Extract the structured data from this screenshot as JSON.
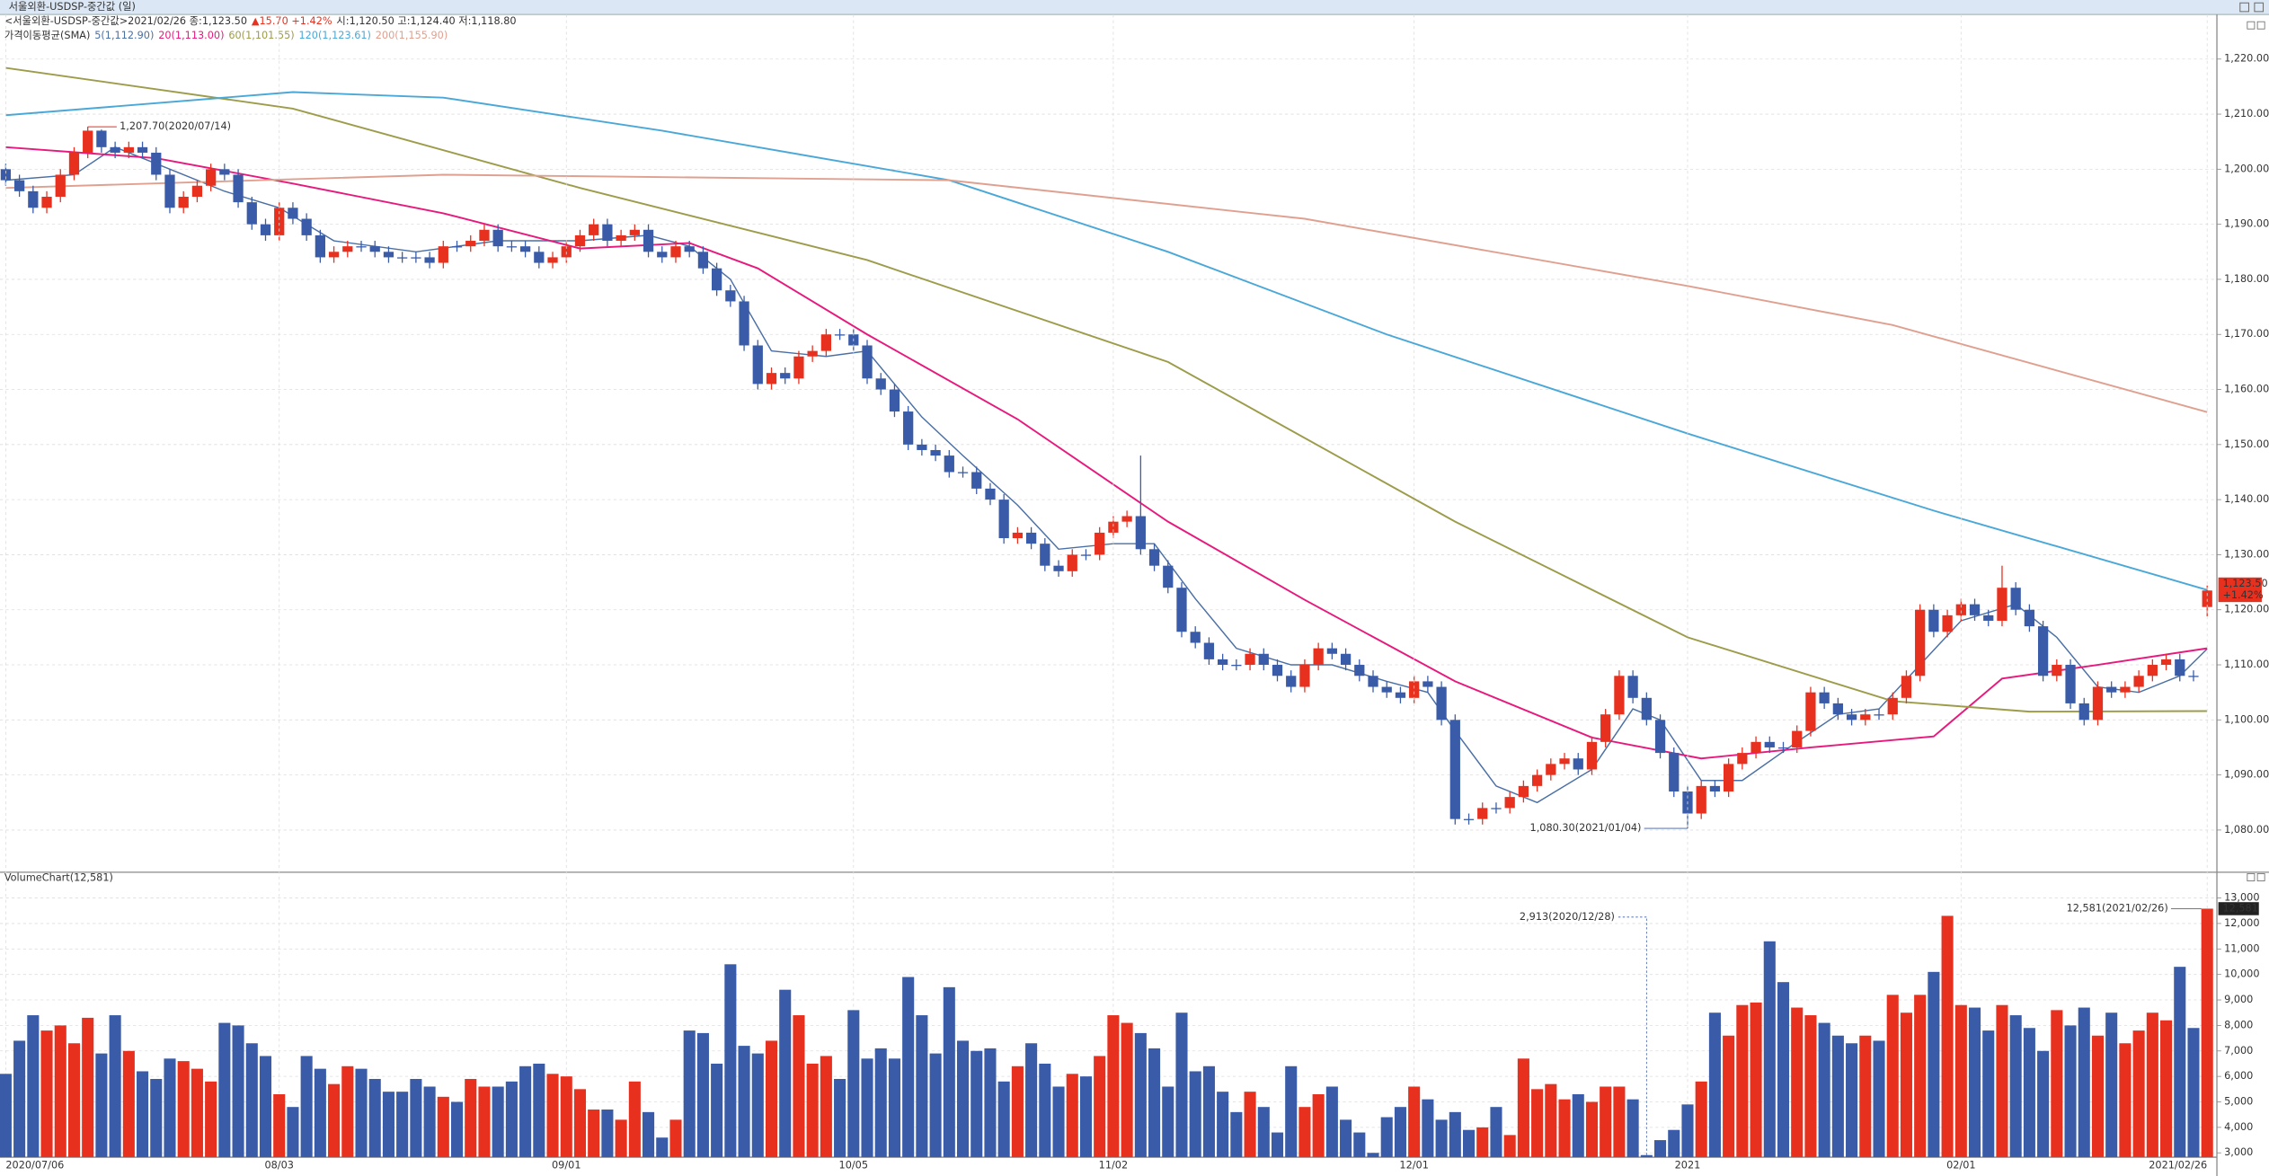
{
  "window_title": "서울외환-USDSP-중간값 (일)",
  "chart_data": [
    {
      "type": "candlestick",
      "info": [
        "<서울외환-USDSP-중간값>2021/02/26 종:1,123.50",
        "▲15.70 +1.42%",
        "시:1,120.50 고:1,124.40 저:1,118.80"
      ],
      "up_color": "#e8301f",
      "down_color": "#3a5ca8",
      "xlim": [
        -0.42,
        161.5
      ],
      "ylim": [
        1072.6,
        1228.1
      ],
      "yticks": [
        {
          "value": 1080,
          "label": "1,080.00"
        },
        {
          "value": 1090,
          "label": "1,090.00"
        },
        {
          "value": 1100,
          "label": "1,100.00"
        },
        {
          "value": 1110,
          "label": "1,110.00"
        },
        {
          "value": 1120,
          "label": "1,120.00"
        },
        {
          "value": 1130,
          "label": "1,130.00"
        },
        {
          "value": 1140,
          "label": "1,140.00"
        },
        {
          "value": 1150,
          "label": "1,150.00"
        },
        {
          "value": 1160,
          "label": "1,160.00"
        },
        {
          "value": 1170,
          "label": "1,170.00"
        },
        {
          "value": 1180,
          "label": "1,180.00"
        },
        {
          "value": 1190,
          "label": "1,190.00"
        },
        {
          "value": 1200,
          "label": "1,200.00"
        },
        {
          "value": 1210,
          "label": "1,210.00"
        },
        {
          "value": 1220,
          "label": "1,220.00"
        }
      ],
      "open": [
        1200,
        1198,
        1196,
        1193,
        1195,
        1199,
        1203,
        1207,
        1204,
        1203,
        1204,
        1203,
        1199,
        1193,
        1195,
        1197,
        1200,
        1199,
        1194,
        1190,
        1188,
        1193,
        1191,
        1188,
        1184,
        1185,
        1186,
        1186,
        1185,
        1184,
        1184,
        1184,
        1183,
        1186,
        1186,
        1187,
        1189,
        1186,
        1186,
        1185,
        1183,
        1184,
        1186,
        1188,
        1190,
        1187,
        1188,
        1189,
        1185,
        1184,
        1186,
        1185,
        1182,
        1178,
        1176,
        1168,
        1161,
        1163,
        1162,
        1166,
        1167,
        1170,
        1170,
        1168,
        1162,
        1160,
        1156,
        1150,
        1149,
        1148,
        1145,
        1145,
        1142,
        1140,
        1133,
        1134,
        1132,
        1128,
        1127,
        1130,
        1130,
        1134,
        1136,
        1137,
        1131,
        1128,
        1124,
        1116,
        1114,
        1111,
        1110,
        1110,
        1112,
        1110,
        1108,
        1106,
        1110,
        1113,
        1112,
        1110,
        1108,
        1106,
        1105,
        1104,
        1107,
        1106,
        1100,
        1082,
        1082,
        1084,
        1084,
        1086,
        1088,
        1090,
        1092,
        1093,
        1091,
        1096,
        1101,
        1108,
        1104,
        1100,
        1094,
        1087,
        1083,
        1088,
        1087,
        1092,
        1094,
        1096,
        1095,
        1095,
        1098,
        1105,
        1103,
        1101,
        1100,
        1101,
        1101,
        1104,
        1108,
        1120,
        1116,
        1119,
        1121,
        1119,
        1118,
        1124,
        1120,
        1117,
        1108,
        1110,
        1103,
        1100,
        1106,
        1105,
        1106,
        1108,
        1110,
        1111,
        1108,
        1120.5
      ],
      "high": [
        1201,
        1199,
        1197,
        1196,
        1200,
        1204,
        1207.7,
        1207.2,
        1205,
        1205,
        1205,
        1204,
        1200,
        1196,
        1198,
        1201,
        1201,
        1200,
        1195,
        1191,
        1194,
        1194,
        1192,
        1189,
        1186,
        1187,
        1187,
        1187,
        1186,
        1185,
        1185,
        1185,
        1187,
        1187,
        1188,
        1190,
        1190,
        1187,
        1187,
        1186,
        1185,
        1187,
        1189,
        1191,
        1191,
        1189,
        1190,
        1190,
        1186,
        1187,
        1187,
        1186,
        1183,
        1179,
        1177,
        1169,
        1164,
        1164,
        1167,
        1168,
        1171,
        1171,
        1171,
        1169,
        1163,
        1161,
        1157,
        1151,
        1150,
        1149,
        1146,
        1146,
        1143,
        1141,
        1135,
        1135,
        1133,
        1129,
        1131,
        1131,
        1135,
        1137,
        1138,
        1148,
        1132,
        1129,
        1125,
        1117,
        1115,
        1112,
        1111,
        1113,
        1113,
        1111,
        1109,
        1111,
        1114,
        1114,
        1113,
        1111,
        1109,
        1107,
        1106,
        1108,
        1108,
        1107,
        1101,
        1083,
        1085,
        1085,
        1087,
        1089,
        1091,
        1093,
        1094,
        1094,
        1097,
        1102,
        1109,
        1109,
        1105,
        1101,
        1095,
        1088,
        1089,
        1089,
        1093,
        1095,
        1097,
        1097,
        1096,
        1099,
        1106,
        1106,
        1104,
        1102,
        1102,
        1102,
        1105,
        1109,
        1121,
        1121,
        1120,
        1122,
        1122,
        1120,
        1128,
        1125,
        1121,
        1118,
        1111,
        1111,
        1104,
        1107,
        1107,
        1107,
        1109,
        1111,
        1112,
        1112,
        1109,
        1124.4
      ],
      "low": [
        1197,
        1195,
        1192,
        1192,
        1194,
        1198,
        1202,
        1203,
        1202,
        1202,
        1202,
        1198,
        1192,
        1192,
        1194,
        1196,
        1198,
        1193,
        1189,
        1187,
        1187,
        1190,
        1187,
        1183,
        1183,
        1184,
        1185,
        1184,
        1183,
        1183,
        1183,
        1182,
        1182,
        1185,
        1185,
        1186,
        1185,
        1185,
        1184,
        1182,
        1182,
        1183,
        1185,
        1187,
        1186,
        1186,
        1187,
        1184,
        1183,
        1183,
        1184,
        1181,
        1177,
        1175,
        1167,
        1160,
        1160,
        1161,
        1161,
        1165,
        1166,
        1169,
        1167,
        1161,
        1159,
        1155,
        1149,
        1148,
        1147,
        1144,
        1144,
        1141,
        1139,
        1132,
        1132,
        1131,
        1127,
        1126,
        1126,
        1129,
        1129,
        1133,
        1135,
        1130,
        1127,
        1123,
        1115,
        1113,
        1110,
        1109,
        1109,
        1109,
        1109,
        1107,
        1105,
        1105,
        1109,
        1111,
        1109,
        1107,
        1105,
        1104,
        1103,
        1103,
        1105,
        1099,
        1081,
        1081,
        1081,
        1083,
        1083,
        1085,
        1087,
        1089,
        1091,
        1090,
        1090,
        1095,
        1100,
        1103,
        1099,
        1093,
        1086,
        1080.3,
        1082,
        1086,
        1086,
        1091,
        1093,
        1094,
        1094,
        1094,
        1097,
        1102,
        1100,
        1099,
        1099,
        1100,
        1100,
        1103,
        1107,
        1115,
        1115,
        1118,
        1118,
        1117,
        1117,
        1119,
        1116,
        1107,
        1107,
        1102,
        1099,
        1099,
        1104,
        1104,
        1105,
        1107,
        1109,
        1107,
        1107,
        1118.8
      ],
      "close": [
        1198,
        1196,
        1193,
        1195,
        1199,
        1203,
        1207,
        1204,
        1203,
        1204,
        1203,
        1199,
        1193,
        1195,
        1197,
        1200,
        1199,
        1194,
        1190,
        1188,
        1193,
        1191,
        1188,
        1184,
        1185,
        1186,
        1186,
        1185,
        1184,
        1184,
        1184,
        1183,
        1186,
        1186,
        1187,
        1189,
        1186,
        1186,
        1185,
        1183,
        1184,
        1186,
        1188,
        1190,
        1187,
        1188,
        1189,
        1185,
        1184,
        1186,
        1185,
        1182,
        1178,
        1176,
        1168,
        1161,
        1163,
        1162,
        1166,
        1167,
        1170,
        1170,
        1168,
        1162,
        1160,
        1156,
        1150,
        1149,
        1148,
        1145,
        1145,
        1142,
        1140,
        1133,
        1134,
        1132,
        1128,
        1127,
        1130,
        1130,
        1134,
        1136,
        1137,
        1131,
        1128,
        1124,
        1116,
        1114,
        1111,
        1110,
        1110,
        1112,
        1110,
        1108,
        1106,
        1110,
        1113,
        1112,
        1110,
        1108,
        1106,
        1105,
        1104,
        1107,
        1106,
        1100,
        1082,
        1082,
        1084,
        1084,
        1086,
        1088,
        1090,
        1092,
        1093,
        1091,
        1096,
        1101,
        1108,
        1104,
        1100,
        1094,
        1087,
        1083,
        1088,
        1087,
        1092,
        1094,
        1096,
        1095,
        1095,
        1098,
        1105,
        1103,
        1101,
        1100,
        1101,
        1101,
        1104,
        1108,
        1120,
        1116,
        1119,
        1121,
        1119,
        1118,
        1124,
        1120,
        1117,
        1108,
        1110,
        1103,
        1100,
        1106,
        1105,
        1106,
        1108,
        1110,
        1111,
        1108,
        1108,
        1123.5
      ],
      "sma_label": "가격이동평균(SMA)",
      "series": [
        {
          "name": "5(1,112.90)",
          "color": "#4a6fa5",
          "x": [
            0,
            5,
            8,
            12,
            16,
            20,
            24,
            30,
            36,
            42,
            47,
            50,
            53,
            56,
            60,
            63,
            67,
            70,
            74,
            77,
            81,
            84,
            87,
            90,
            94,
            97,
            101,
            104,
            106,
            109,
            112,
            116,
            119,
            121,
            124,
            127,
            131,
            134,
            137,
            140,
            143,
            147,
            150,
            153,
            156,
            159,
            161
          ],
          "values": [
            1198,
            1199,
            1204,
            1200,
            1196,
            1193,
            1187,
            1185,
            1187,
            1187,
            1188,
            1186,
            1180,
            1167,
            1166,
            1167,
            1155,
            1148,
            1139,
            1131,
            1132,
            1132,
            1122,
            1113,
            1110,
            1110,
            1107,
            1105,
            1098,
            1088,
            1085,
            1091,
            1102,
            1100,
            1089,
            1089,
            1096,
            1101,
            1102,
            1110,
            1118,
            1121,
            1115,
            1106,
            1105,
            1108,
            1112.9
          ]
        },
        {
          "name": "20(1,113.00)",
          "color": "#e8197d",
          "x": [
            0,
            11,
            21,
            32,
            42,
            50,
            55,
            63,
            74,
            85,
            95,
            106,
            116,
            124,
            132,
            141,
            146,
            153,
            161
          ],
          "values": [
            1204,
            1202,
            1197.4,
            1192,
            1185.6,
            1186.6,
            1182,
            1170,
            1154.6,
            1136,
            1121.8,
            1107,
            1096.8,
            1093,
            1095,
            1097,
            1107.5,
            1110,
            1113
          ]
        },
        {
          "name": "60(1,101.55)",
          "color": "#9c9c4a",
          "x": [
            0,
            21,
            42,
            63,
            85,
            106,
            123,
            138,
            148,
            161
          ],
          "values": [
            1218.4,
            1211,
            1196.6,
            1183.5,
            1165,
            1136,
            1115,
            1103.4,
            1101.5,
            1101.6
          ]
        },
        {
          "name": "120(1,123.61)",
          "color": "#4aa8d8",
          "x": [
            0,
            21,
            32,
            48,
            69,
            85,
            101,
            123,
            141,
            161
          ],
          "values": [
            1209.8,
            1214,
            1213,
            1207,
            1198,
            1185,
            1170,
            1152,
            1138,
            1123.6
          ]
        },
        {
          "name": "200(1,155.90)",
          "color": "#e0a090",
          "x": [
            0,
            32,
            69,
            95,
            123,
            138,
            161
          ],
          "values": [
            1196.6,
            1199,
            1198,
            1191,
            1178.8,
            1171.7,
            1155.9
          ]
        }
      ],
      "annotations": [
        "1,207.70(2020/07/14)",
        "1,080.30(2021/01/04)"
      ],
      "last_tag": [
        "1,123.50",
        "+1.42%"
      ]
    },
    {
      "type": "bar",
      "title": "VolumeChart(12,581)",
      "xlim": [
        -0.42,
        161.5
      ],
      "xticks": [
        {
          "value": 0,
          "label": "2020/07/06"
        },
        {
          "value": 20,
          "label": "08/03"
        },
        {
          "value": 41,
          "label": "09/01"
        },
        {
          "value": 62,
          "label": "10/05"
        },
        {
          "value": 81,
          "label": "11/02"
        },
        {
          "value": 103,
          "label": "12/01"
        },
        {
          "value": 123,
          "label": "2021"
        },
        {
          "value": 143,
          "label": "02/01"
        },
        {
          "value": 161,
          "label": "2021/02/26"
        }
      ],
      "ylim": [
        2830,
        13500
      ],
      "yticks": [
        {
          "value": 3000,
          "label": "3,000"
        },
        {
          "value": 4000,
          "label": "4,000"
        },
        {
          "value": 5000,
          "label": "5,000"
        },
        {
          "value": 6000,
          "label": "6,000"
        },
        {
          "value": 7000,
          "label": "7,000"
        },
        {
          "value": 8000,
          "label": "8,000"
        },
        {
          "value": 9000,
          "label": "9,000"
        },
        {
          "value": 10000,
          "label": "10,000"
        },
        {
          "value": 11000,
          "label": "11,000"
        },
        {
          "value": 12000,
          "label": "12,000"
        },
        {
          "value": 13000,
          "label": "13,000"
        }
      ],
      "values": [
        6100,
        7400,
        8400,
        7800,
        8000,
        7300,
        8300,
        6900,
        8400,
        7000,
        6200,
        5900,
        6700,
        6600,
        6300,
        5800,
        8100,
        8000,
        7300,
        6800,
        5300,
        4800,
        6800,
        6300,
        5700,
        6400,
        6300,
        5900,
        5400,
        5400,
        5900,
        5600,
        5200,
        5000,
        5900,
        5600,
        5600,
        5800,
        6400,
        6500,
        6100,
        6000,
        5500,
        4700,
        4700,
        4300,
        5800,
        4600,
        3600,
        4300,
        7800,
        7700,
        6500,
        10400,
        7200,
        6900,
        7400,
        9400,
        8400,
        6500,
        6800,
        5900,
        8600,
        6700,
        7100,
        6700,
        9900,
        8400,
        6900,
        9500,
        7400,
        7000,
        7100,
        5800,
        6400,
        7300,
        6500,
        5600,
        6100,
        6000,
        6800,
        8400,
        8100,
        7700,
        7100,
        5600,
        8500,
        6200,
        6400,
        5400,
        4600,
        5400,
        4800,
        3800,
        6400,
        4800,
        5300,
        5600,
        4300,
        3800,
        3000,
        4400,
        4800,
        5600,
        5100,
        4300,
        4600,
        3900,
        4000,
        4800,
        3700,
        6700,
        5500,
        5700,
        5100,
        5300,
        5000,
        5600,
        5600,
        5100,
        2913,
        3500,
        3900,
        4900,
        5800,
        8500,
        7600,
        8800,
        8900,
        11300,
        9700,
        8700,
        8400,
        8100,
        7600,
        7300,
        7600,
        7400,
        9200,
        8500,
        9200,
        10100,
        12300,
        8800,
        8700,
        7800,
        8800,
        8400,
        7900,
        7000,
        8600,
        8000,
        8700,
        7600,
        8500,
        7300,
        7800,
        8500,
        8200,
        10300,
        7900,
        12581
      ],
      "annotations": [
        "2,913(2020/12/28)",
        "12,581(2021/02/26)"
      ],
      "last_tag": "12,581"
    }
  ]
}
